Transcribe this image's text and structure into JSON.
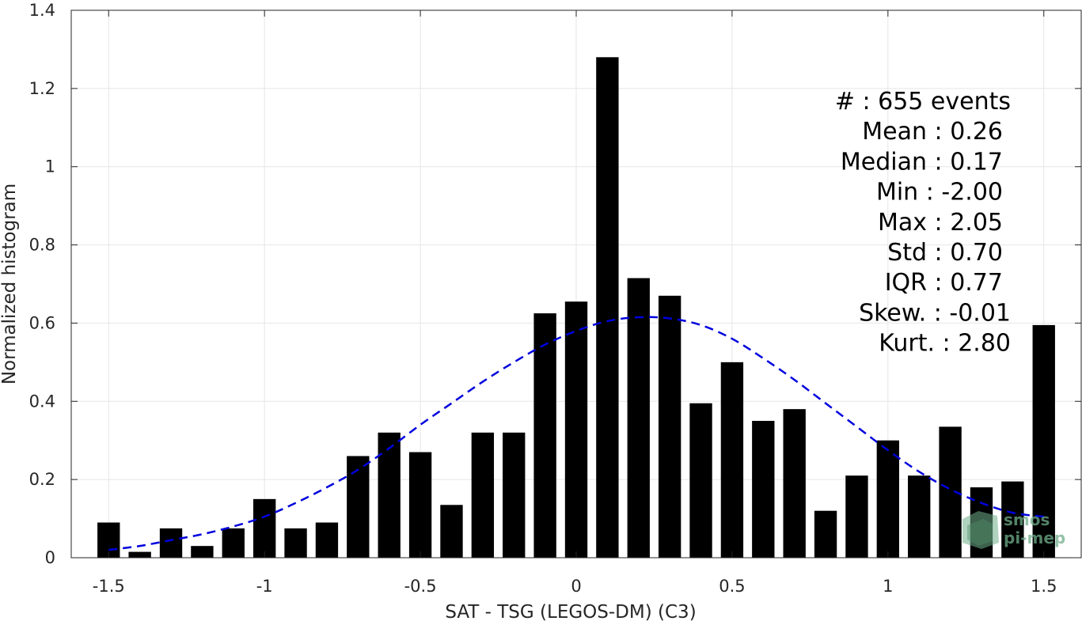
{
  "chart_data": {
    "type": "bar",
    "xlabel": "SAT - TSG (LEGOS-DM) (C3)",
    "ylabel": "Normalized histogram",
    "xlim": [
      -1.62,
      1.62
    ],
    "ylim": [
      0,
      1.4
    ],
    "grid": true,
    "x_ticks": [
      -1.5,
      -1,
      -0.5,
      0,
      0.5,
      1,
      1.5
    ],
    "x_tick_labels": [
      "-1.5",
      "-1",
      "-0.5",
      "0",
      "0.5",
      "1",
      "1.5"
    ],
    "y_ticks": [
      0,
      0.2,
      0.4,
      0.6,
      0.8,
      1,
      1.2,
      1.4
    ],
    "y_tick_labels": [
      "0",
      "0.2",
      "0.4",
      "0.6",
      "0.8",
      "1",
      "1.2",
      "1.4"
    ],
    "bin_width": 0.1,
    "bar_color": "#000000",
    "bars": {
      "x": [
        -1.5,
        -1.4,
        -1.3,
        -1.2,
        -1.1,
        -1.0,
        -0.9,
        -0.8,
        -0.7,
        -0.6,
        -0.5,
        -0.4,
        -0.3,
        -0.2,
        -0.1,
        0.0,
        0.1,
        0.2,
        0.3,
        0.4,
        0.5,
        0.6,
        0.7,
        0.8,
        0.9,
        1.0,
        1.1,
        1.2,
        1.3,
        1.4,
        1.5
      ],
      "values": [
        0.09,
        0.015,
        0.075,
        0.03,
        0.075,
        0.15,
        0.075,
        0.09,
        0.26,
        0.32,
        0.27,
        0.135,
        0.32,
        0.32,
        0.625,
        0.655,
        1.28,
        0.715,
        0.67,
        0.395,
        0.5,
        0.35,
        0.38,
        0.12,
        0.21,
        0.3,
        0.21,
        0.335,
        0.18,
        0.195,
        0.595
      ]
    },
    "fit_curve": {
      "style": "dashed",
      "color": "#0000dd",
      "x": [
        -1.5,
        -1.4,
        -1.3,
        -1.2,
        -1.1,
        -1.0,
        -0.9,
        -0.8,
        -0.7,
        -0.6,
        -0.5,
        -0.4,
        -0.3,
        -0.2,
        -0.1,
        0.0,
        0.1,
        0.2,
        0.3,
        0.4,
        0.5,
        0.6,
        0.7,
        0.8,
        0.9,
        1.0,
        1.1,
        1.2,
        1.3,
        1.4,
        1.5
      ],
      "y": [
        0.02,
        0.03,
        0.045,
        0.06,
        0.08,
        0.105,
        0.14,
        0.18,
        0.225,
        0.28,
        0.34,
        0.395,
        0.45,
        0.5,
        0.545,
        0.58,
        0.605,
        0.615,
        0.612,
        0.595,
        0.56,
        0.51,
        0.455,
        0.395,
        0.335,
        0.275,
        0.22,
        0.175,
        0.14,
        0.115,
        0.105
      ]
    }
  },
  "stats": [
    {
      "label": "#  ",
      "value": ": 655 events",
      "align": 1277
    },
    {
      "label": "Mean ",
      "value": ": 0.26",
      "align": 1267
    },
    {
      "label": "Median ",
      "value": ": 0.17",
      "align": 1267
    },
    {
      "label": "Min ",
      "value": ": -2.00",
      "align": 1267
    },
    {
      "label": "Max ",
      "value": ": 2.05",
      "align": 1267
    },
    {
      "label": "Std ",
      "value": ": 0.70",
      "align": 1267
    },
    {
      "label": "IQR ",
      "value": ": 0.77",
      "align": 1267
    },
    {
      "label": "Skew. ",
      "value": ": -0.01",
      "align": 1277
    },
    {
      "label": "Kurt. ",
      "value": ": 2.80",
      "align": 1277
    }
  ],
  "logo": {
    "line1": "smos",
    "line2": "pi-mep",
    "color": "#6fae8a"
  }
}
